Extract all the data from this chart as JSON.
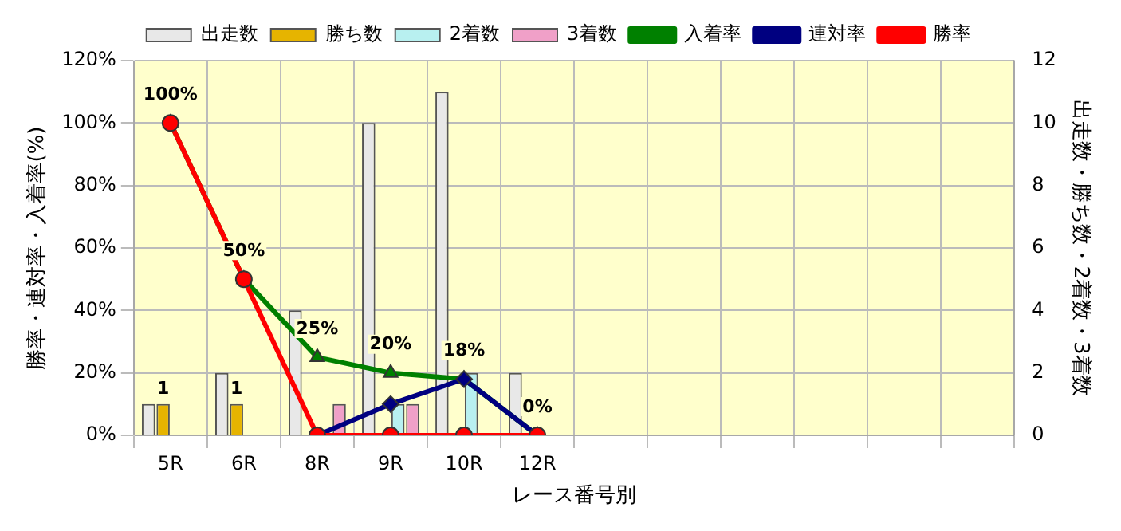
{
  "chart_data": {
    "type": "bar",
    "xlabel": "レース番号別",
    "ylabel": "勝率・連対率・入着率(%)",
    "y2label": "出走数・勝ち数・2着数・3着数",
    "categories": [
      "5R",
      "6R",
      "8R",
      "9R",
      "10R",
      "12R",
      null,
      null,
      null,
      null,
      null,
      null
    ],
    "series": [
      {
        "name": "出走数",
        "axis": "y2",
        "color": "#e8e8e8",
        "values": [
          1,
          2,
          4,
          10,
          11,
          2,
          null,
          null,
          null,
          null,
          null,
          null
        ]
      },
      {
        "name": "勝ち数",
        "axis": "y2",
        "color": "#e6b400",
        "values": [
          1,
          1,
          0,
          0,
          0,
          0,
          null,
          null,
          null,
          null,
          null,
          null
        ],
        "value_labels": [
          "1",
          "1",
          null,
          null,
          null,
          null,
          null,
          null,
          null,
          null,
          null,
          null
        ]
      },
      {
        "name": "2着数",
        "axis": "y2",
        "color": "#b8f0f0",
        "values": [
          0,
          0,
          0,
          1,
          2,
          0,
          null,
          null,
          null,
          null,
          null,
          null
        ]
      },
      {
        "name": "3着数",
        "axis": "y2",
        "color": "#f0a0c8",
        "values": [
          0,
          0,
          1,
          1,
          0,
          0,
          null,
          null,
          null,
          null,
          null,
          null
        ]
      },
      {
        "name": "入着率",
        "type": "line",
        "axis": "y",
        "color": "#008000",
        "marker": "triangle",
        "values": [
          100,
          50,
          25,
          20,
          18,
          0,
          null,
          null,
          null,
          null,
          null,
          null
        ],
        "value_labels": [
          "100%",
          "50%",
          "25%",
          "20%",
          "18%",
          "0%",
          null,
          null,
          null,
          null,
          null,
          null
        ]
      },
      {
        "name": "連対率",
        "type": "line",
        "axis": "y",
        "color": "#000080",
        "marker": "diamond",
        "values": [
          null,
          null,
          0,
          10,
          18,
          0,
          null,
          null,
          null,
          null,
          null,
          null
        ]
      },
      {
        "name": "勝率",
        "type": "line",
        "axis": "y",
        "color": "#ff0000",
        "marker": "circle",
        "values": [
          100,
          50,
          0,
          0,
          0,
          0,
          null,
          null,
          null,
          null,
          null,
          null
        ]
      }
    ],
    "ylim": [
      0,
      120
    ],
    "yticks": [
      {
        "value": 0,
        "label": "0%"
      },
      {
        "value": 20,
        "label": "20%"
      },
      {
        "value": 40,
        "label": "40%"
      },
      {
        "value": 60,
        "label": "60%"
      },
      {
        "value": 80,
        "label": "80%"
      },
      {
        "value": 100,
        "label": "100%"
      },
      {
        "value": 120,
        "label": "120%"
      }
    ],
    "y2lim": [
      0,
      12
    ],
    "y2ticks": [
      0,
      2,
      4,
      6,
      8,
      10,
      12
    ],
    "grid": true,
    "legend": "top",
    "line_style": "solid"
  }
}
